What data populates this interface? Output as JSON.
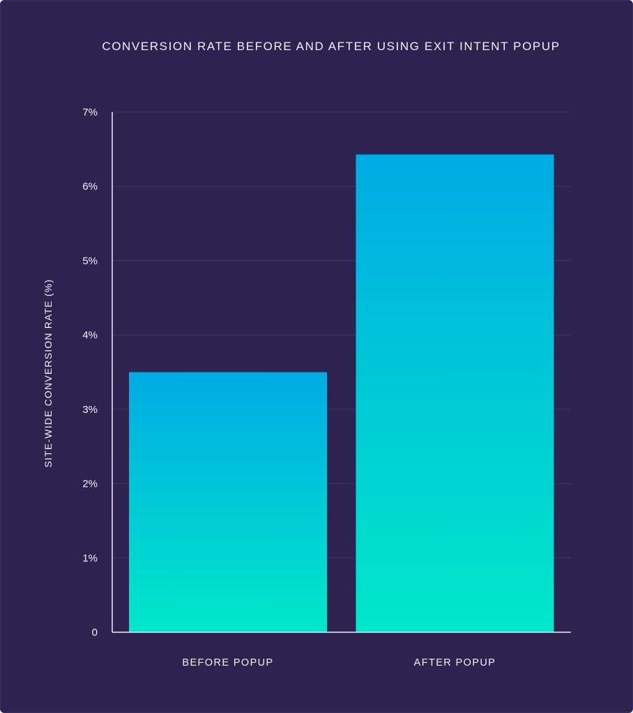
{
  "chart_data": {
    "type": "bar",
    "title": "CONVERSION RATE BEFORE AND AFTER USING EXIT INTENT POPUP",
    "xlabel": "",
    "ylabel": "SITE-WIDE CONVERSION RATE (%)",
    "categories": [
      "BEFORE POPUP",
      "AFTER POPUP"
    ],
    "values": [
      3.5,
      6.43
    ],
    "ylim": [
      0,
      7
    ],
    "yticks": [
      0,
      1,
      2,
      3,
      4,
      5,
      6,
      7
    ],
    "ytick_labels": [
      "0",
      "1%",
      "2%",
      "3%",
      "4%",
      "5%",
      "6%",
      "7%"
    ],
    "grid": true,
    "legend": "none",
    "colors": {
      "background": "#2d2350",
      "bar_top": "#00abe4",
      "bar_bottom": "#00e8c9",
      "grid": "#3f3767",
      "axis": "#f2f2f7",
      "text": "#f2f2f7"
    }
  }
}
